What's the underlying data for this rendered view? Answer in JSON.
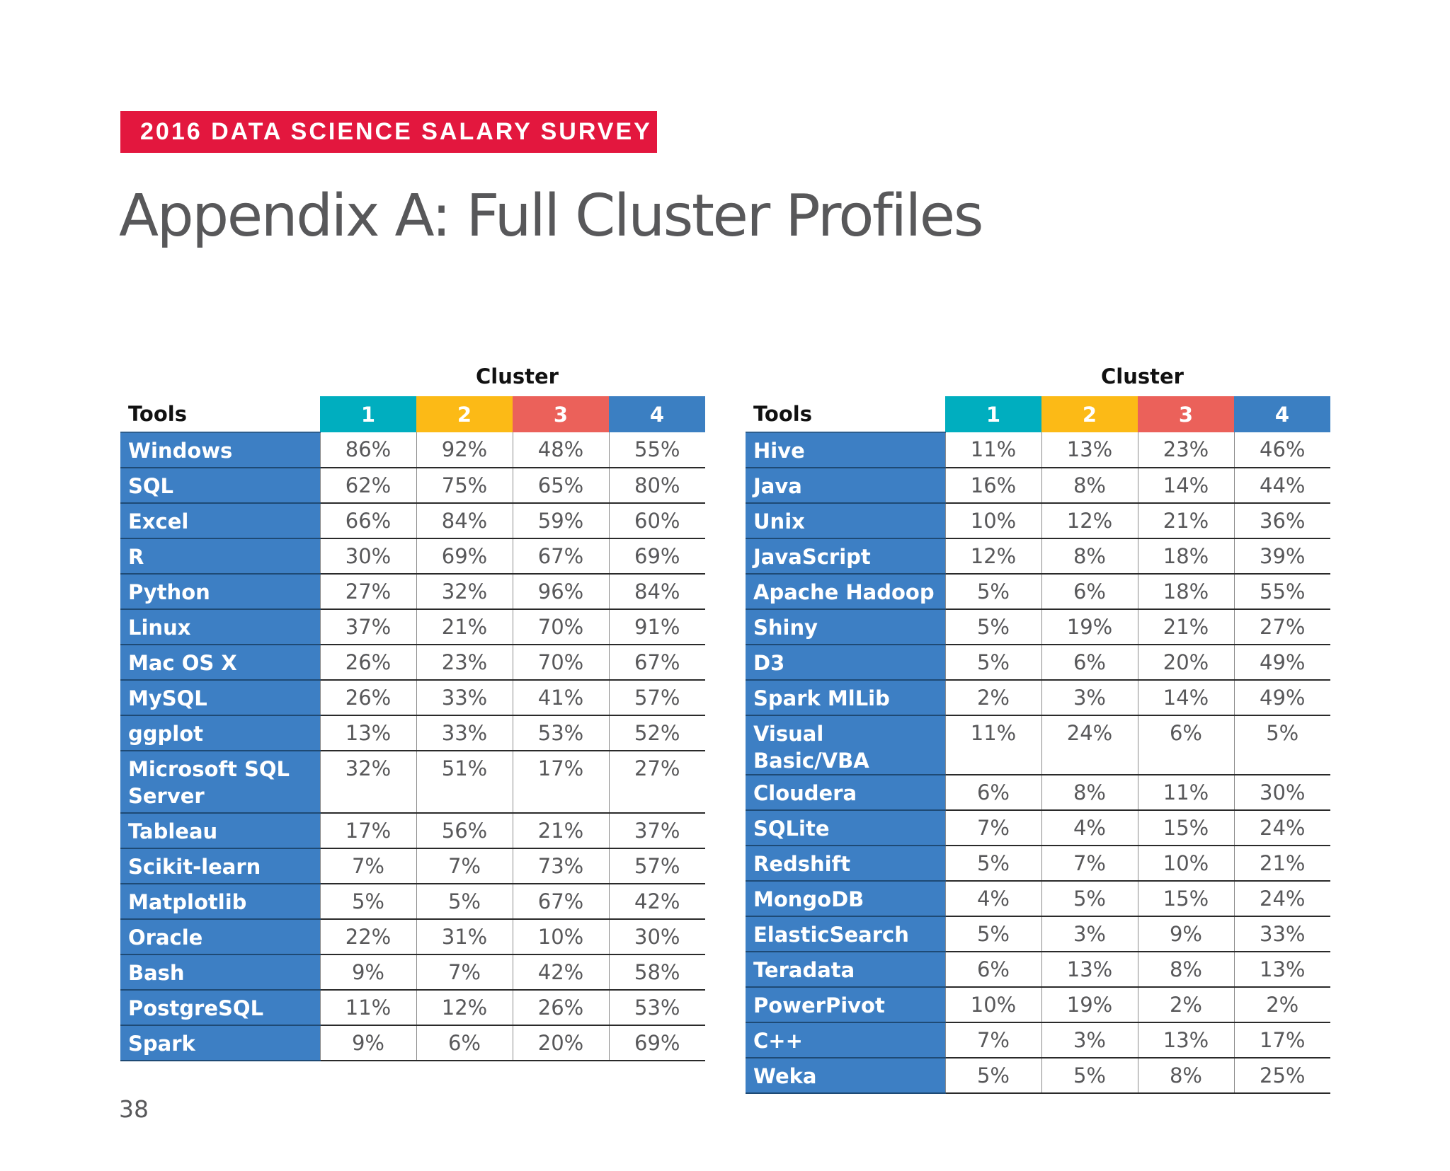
{
  "banner": "2016 DATA SCIENCE SALARY SURVEY",
  "title": "Appendix A: Full Cluster Profiles",
  "page_number": "38",
  "colors": {
    "banner": "#e3173e",
    "cluster_1": "#00aebf",
    "cluster_2": "#fcba16",
    "cluster_3": "#eb615a",
    "cluster_4": "#3b7fc2",
    "tool_cell": "#3d7fc4"
  },
  "left_table": {
    "cluster_label": "Cluster",
    "tools_header": "Tools",
    "clusters": [
      "1",
      "2",
      "3",
      "4"
    ],
    "rows": [
      {
        "tool": "Windows",
        "values": [
          "86%",
          "92%",
          "48%",
          "55%"
        ]
      },
      {
        "tool": "SQL",
        "values": [
          "62%",
          "75%",
          "65%",
          "80%"
        ]
      },
      {
        "tool": "Excel",
        "values": [
          "66%",
          "84%",
          "59%",
          "60%"
        ]
      },
      {
        "tool": "R",
        "values": [
          "30%",
          "69%",
          "67%",
          "69%"
        ]
      },
      {
        "tool": "Python",
        "values": [
          "27%",
          "32%",
          "96%",
          "84%"
        ]
      },
      {
        "tool": "Linux",
        "values": [
          "37%",
          "21%",
          "70%",
          "91%"
        ]
      },
      {
        "tool": "Mac OS X",
        "values": [
          "26%",
          "23%",
          "70%",
          "67%"
        ]
      },
      {
        "tool": "MySQL",
        "values": [
          "26%",
          "33%",
          "41%",
          "57%"
        ]
      },
      {
        "tool": "ggplot",
        "values": [
          "13%",
          "33%",
          "53%",
          "52%"
        ]
      },
      {
        "tool": "Microsoft SQL Server",
        "values": [
          "32%",
          "51%",
          "17%",
          "27%"
        ]
      },
      {
        "tool": "Tableau",
        "values": [
          "17%",
          "56%",
          "21%",
          "37%"
        ]
      },
      {
        "tool": "Scikit-learn",
        "values": [
          "7%",
          "7%",
          "73%",
          "57%"
        ]
      },
      {
        "tool": "Matplotlib",
        "values": [
          "5%",
          "5%",
          "67%",
          "42%"
        ]
      },
      {
        "tool": "Oracle",
        "values": [
          "22%",
          "31%",
          "10%",
          "30%"
        ]
      },
      {
        "tool": "Bash",
        "values": [
          "9%",
          "7%",
          "42%",
          "58%"
        ]
      },
      {
        "tool": "PostgreSQL",
        "values": [
          "11%",
          "12%",
          "26%",
          "53%"
        ]
      },
      {
        "tool": "Spark",
        "values": [
          "9%",
          "6%",
          "20%",
          "69%"
        ]
      }
    ]
  },
  "right_table": {
    "cluster_label": "Cluster",
    "tools_header": "Tools",
    "clusters": [
      "1",
      "2",
      "3",
      "4"
    ],
    "rows": [
      {
        "tool": "Hive",
        "values": [
          "11%",
          "13%",
          "23%",
          "46%"
        ]
      },
      {
        "tool": "Java",
        "values": [
          "16%",
          "8%",
          "14%",
          "44%"
        ]
      },
      {
        "tool": "Unix",
        "values": [
          "10%",
          "12%",
          "21%",
          "36%"
        ]
      },
      {
        "tool": "JavaScript",
        "values": [
          "12%",
          "8%",
          "18%",
          "39%"
        ]
      },
      {
        "tool": "Apache Hadoop",
        "values": [
          "5%",
          "6%",
          "18%",
          "55%"
        ]
      },
      {
        "tool": "Shiny",
        "values": [
          "5%",
          "19%",
          "21%",
          "27%"
        ]
      },
      {
        "tool": "D3",
        "values": [
          "5%",
          "6%",
          "20%",
          "49%"
        ]
      },
      {
        "tool": "Spark MlLib",
        "values": [
          "2%",
          "3%",
          "14%",
          "49%"
        ]
      },
      {
        "tool": "Visual Basic/VBA",
        "values": [
          "11%",
          "24%",
          "6%",
          "5%"
        ]
      },
      {
        "tool": "Cloudera",
        "values": [
          "6%",
          "8%",
          "11%",
          "30%"
        ]
      },
      {
        "tool": "SQLite",
        "values": [
          "7%",
          "4%",
          "15%",
          "24%"
        ]
      },
      {
        "tool": "Redshift",
        "values": [
          "5%",
          "7%",
          "10%",
          "21%"
        ]
      },
      {
        "tool": "MongoDB",
        "values": [
          "4%",
          "5%",
          "15%",
          "24%"
        ]
      },
      {
        "tool": "ElasticSearch",
        "values": [
          "5%",
          "3%",
          "9%",
          "33%"
        ]
      },
      {
        "tool": "Teradata",
        "values": [
          "6%",
          "13%",
          "8%",
          "13%"
        ]
      },
      {
        "tool": "PowerPivot",
        "values": [
          "10%",
          "19%",
          "2%",
          "2%"
        ]
      },
      {
        "tool": "C++",
        "values": [
          "7%",
          "3%",
          "13%",
          "17%"
        ]
      },
      {
        "tool": "Weka",
        "values": [
          "5%",
          "5%",
          "8%",
          "25%"
        ]
      }
    ]
  }
}
